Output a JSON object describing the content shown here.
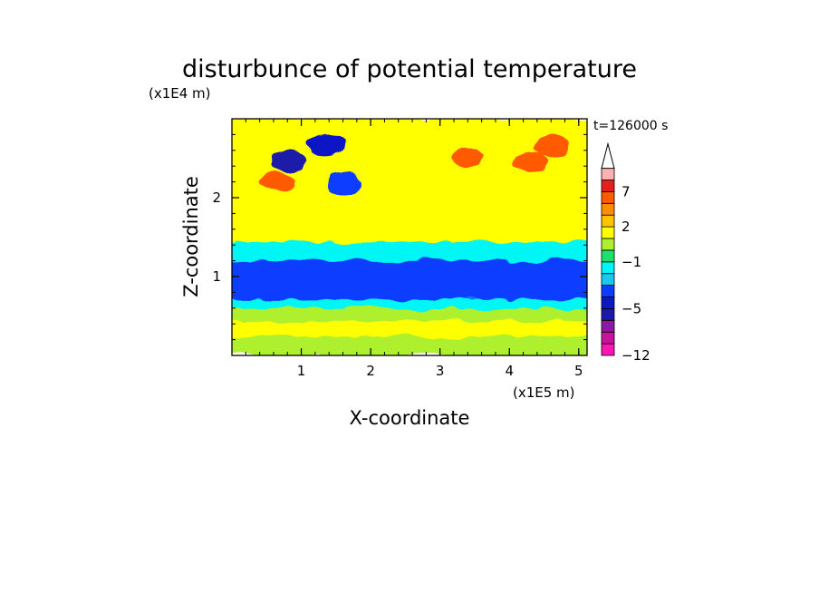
{
  "chart_data": {
    "type": "heatmap",
    "title": "disturbunce of potential temperature",
    "xlabel": "X-coordinate",
    "ylabel": "Z-coordinate",
    "x_unit": "(x1E5 m)",
    "y_unit": "(x1E4 m)",
    "time_label": "t=126000 s",
    "x_ticks": [
      "1",
      "2",
      "3",
      "4",
      "5"
    ],
    "y_ticks": [
      "1",
      "2"
    ],
    "xlim": [
      0,
      5.12
    ],
    "ylim": [
      0,
      3.0
    ],
    "colorbar": {
      "tick_labels": [
        "7",
        "2",
        "−1",
        "−5",
        "−12"
      ],
      "tick_values": [
        7,
        2,
        -1,
        -5,
        -12
      ],
      "levels": [
        -12,
        -10,
        -8,
        -6,
        -5,
        -4,
        -3,
        -2,
        -1,
        0,
        1,
        2,
        3,
        5,
        7,
        9,
        11
      ],
      "colors": [
        "#ff14b4",
        "#c8149b",
        "#8b1aa3",
        "#1a1aa8",
        "#0a18c6",
        "#0e3cff",
        "#18c8ee",
        "#00f5f5",
        "#19e36c",
        "#aff02d",
        "#ffff00",
        "#ffc400",
        "#ff8d00",
        "#ff5a00",
        "#e61e1e",
        "#ffb0b0"
      ],
      "extend": "max"
    },
    "bands": [
      {
        "z_range": [
          0,
          0.08
        ],
        "value": 0.5
      },
      {
        "z_range": [
          0.08,
          0.25
        ],
        "value": 0.2
      },
      {
        "z_range": [
          0.25,
          0.45
        ],
        "value": 1.5
      },
      {
        "z_range": [
          0.45,
          0.6
        ],
        "value": 0.3
      },
      {
        "z_range": [
          0.6,
          0.72
        ],
        "value": -1.5
      },
      {
        "z_range": [
          0.72,
          1.22
        ],
        "value": -3.5
      },
      {
        "z_range": [
          1.22,
          1.45
        ],
        "value": -1.5
      },
      {
        "z_range": [
          1.45,
          1.9
        ],
        "value": 1.5
      },
      {
        "z_range": [
          1.9,
          3.0
        ],
        "value": 1.8
      }
    ],
    "features": [
      {
        "x": 0.8,
        "z": 2.47,
        "value": -5.5
      },
      {
        "x": 1.35,
        "z": 2.68,
        "value": -4.5
      },
      {
        "x": 1.6,
        "z": 2.17,
        "value": -4.0
      },
      {
        "x": 0.65,
        "z": 2.2,
        "value": 5.0
      },
      {
        "x": 3.4,
        "z": 2.5,
        "value": 5.0
      },
      {
        "x": 4.3,
        "z": 2.45,
        "value": 5.0
      },
      {
        "x": 4.6,
        "z": 2.65,
        "value": 6.0
      }
    ]
  }
}
